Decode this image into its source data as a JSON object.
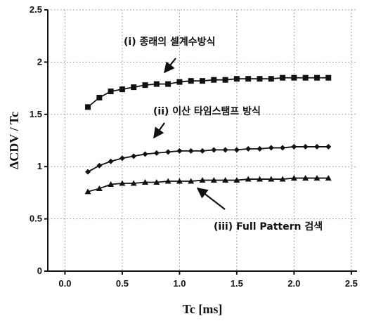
{
  "chart_data": {
    "type": "line",
    "title": "",
    "xlabel": "Tc [ms]",
    "ylabel": "ΔCDV / Tc",
    "xlim": [
      -0.15,
      2.55
    ],
    "ylim": [
      0,
      2.5
    ],
    "xticks": [
      0.0,
      0.5,
      1.0,
      1.5,
      2.0,
      2.5
    ],
    "yticks": [
      0,
      0.5,
      1,
      1.5,
      2,
      2.5
    ],
    "xtick_labels": [
      "0.0",
      "0.5",
      "1.0",
      "1.5",
      "2.0",
      "2.5"
    ],
    "ytick_labels": [
      "0",
      "0.5",
      "1",
      "1.5",
      "2",
      "2.5"
    ],
    "grid": true,
    "legend": "none",
    "x": [
      0.2,
      0.3,
      0.4,
      0.5,
      0.6,
      0.7,
      0.8,
      0.9,
      1.0,
      1.1,
      1.2,
      1.3,
      1.4,
      1.5,
      1.6,
      1.7,
      1.8,
      1.9,
      2.0,
      2.1,
      2.2,
      2.3
    ],
    "series": [
      {
        "marker": "square",
        "color": "#111111",
        "values": [
          1.57,
          1.66,
          1.72,
          1.74,
          1.76,
          1.78,
          1.79,
          1.79,
          1.81,
          1.82,
          1.82,
          1.83,
          1.83,
          1.84,
          1.84,
          1.84,
          1.84,
          1.85,
          1.85,
          1.85,
          1.85,
          1.85
        ]
      },
      {
        "marker": "diamond",
        "color": "#111111",
        "values": [
          0.95,
          1.01,
          1.05,
          1.08,
          1.1,
          1.12,
          1.13,
          1.14,
          1.15,
          1.15,
          1.15,
          1.16,
          1.16,
          1.16,
          1.17,
          1.17,
          1.18,
          1.18,
          1.19,
          1.19,
          1.19,
          1.19
        ]
      },
      {
        "marker": "triangle",
        "color": "#111111",
        "values": [
          0.76,
          0.79,
          0.83,
          0.84,
          0.84,
          0.85,
          0.85,
          0.86,
          0.86,
          0.86,
          0.87,
          0.87,
          0.87,
          0.87,
          0.88,
          0.88,
          0.88,
          0.88,
          0.89,
          0.89,
          0.89,
          0.89
        ]
      }
    ],
    "annotations": [
      {
        "text": "(i) 종래의 셀계수방식"
      },
      {
        "text": "(ii) 이산 타임스탬프 방식"
      },
      {
        "text": "(iii) Full Pattern 검색"
      }
    ]
  }
}
